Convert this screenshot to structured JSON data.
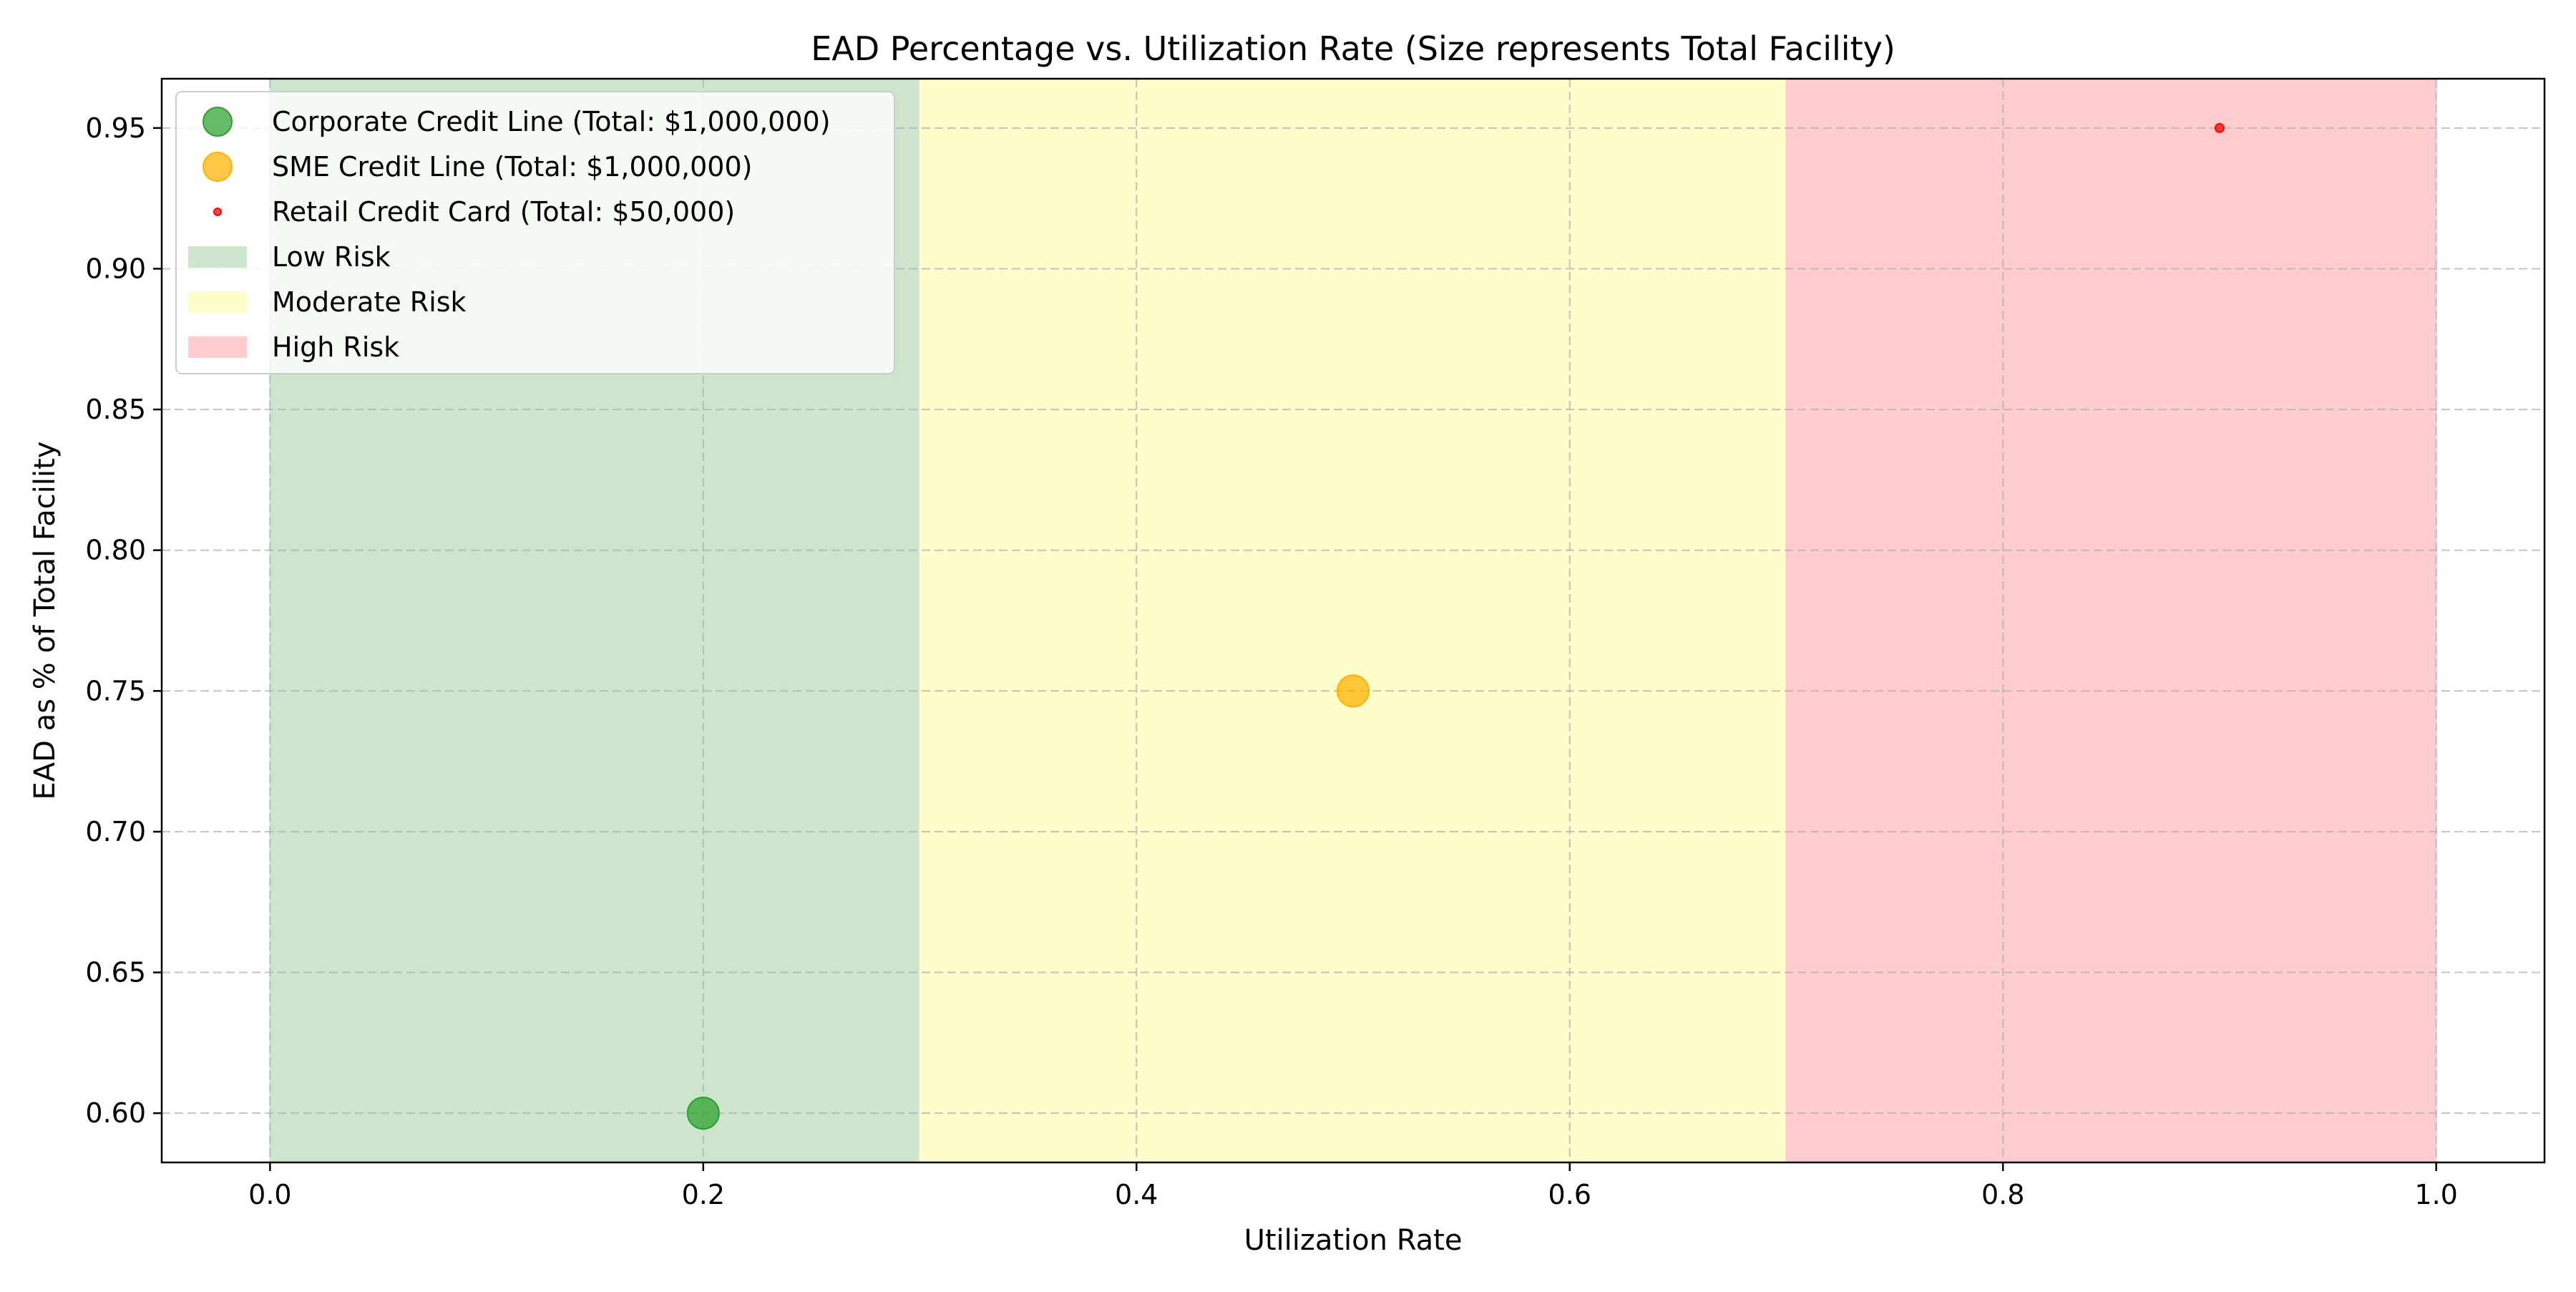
{
  "chart_data": {
    "type": "scatter",
    "title": "EAD Percentage vs. Utilization Rate (Size represents Total Facility)",
    "xlabel": "Utilization Rate",
    "ylabel": "EAD as % of Total Facility",
    "xlim": [
      -0.05,
      1.05
    ],
    "ylim": [
      0.5825,
      0.9675
    ],
    "xticks": [
      0.0,
      0.2,
      0.4,
      0.6,
      0.8,
      1.0
    ],
    "xtick_labels": [
      "0.0",
      "0.2",
      "0.4",
      "0.6",
      "0.8",
      "1.0"
    ],
    "yticks": [
      0.6,
      0.65,
      0.7,
      0.75,
      0.8,
      0.85,
      0.9,
      0.95
    ],
    "ytick_labels": [
      "0.60",
      "0.65",
      "0.70",
      "0.75",
      "0.80",
      "0.85",
      "0.90",
      "0.95"
    ],
    "grid": true,
    "legend_position": "top-left",
    "series": [
      {
        "name": "Corporate Credit Line (Total: $1,000,000)",
        "x": [
          0.2
        ],
        "y": [
          0.6
        ],
        "total_facility": 1000000,
        "color": "#2ca02c"
      },
      {
        "name": "SME Credit Line (Total: $1,000,000)",
        "x": [
          0.5
        ],
        "y": [
          0.75
        ],
        "total_facility": 1000000,
        "color": "#ffb000"
      },
      {
        "name": "Retail Credit Card (Total: $50,000)",
        "x": [
          0.9
        ],
        "y": [
          0.95
        ],
        "total_facility": 50000,
        "color": "#ff0000"
      }
    ],
    "regions": [
      {
        "name": "Low Risk",
        "x_range": [
          0.0,
          0.3
        ],
        "color": "#cde5cc"
      },
      {
        "name": "Moderate Risk",
        "x_range": [
          0.3,
          0.7
        ],
        "color": "#fefecc"
      },
      {
        "name": "High Risk",
        "x_range": [
          0.7,
          1.0
        ],
        "color": "#feccce"
      }
    ]
  }
}
